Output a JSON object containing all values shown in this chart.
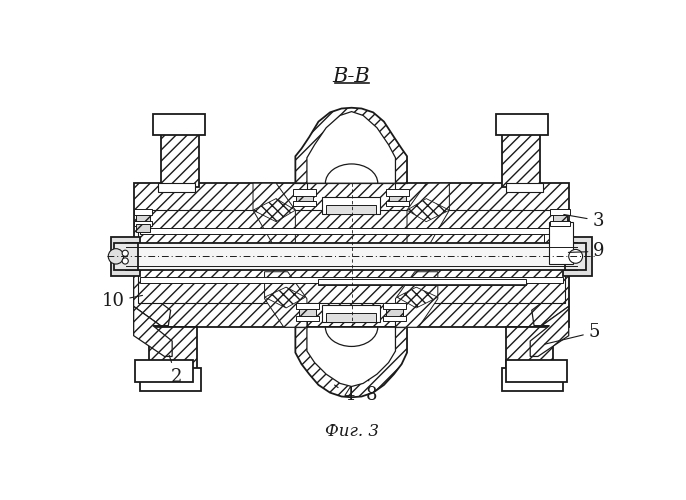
{
  "title_section": "В-В",
  "caption": "Фиг. 3",
  "bg_color": "#ffffff",
  "line_color": "#000000",
  "figsize": [
    6.86,
    5.0
  ],
  "dpi": 100
}
